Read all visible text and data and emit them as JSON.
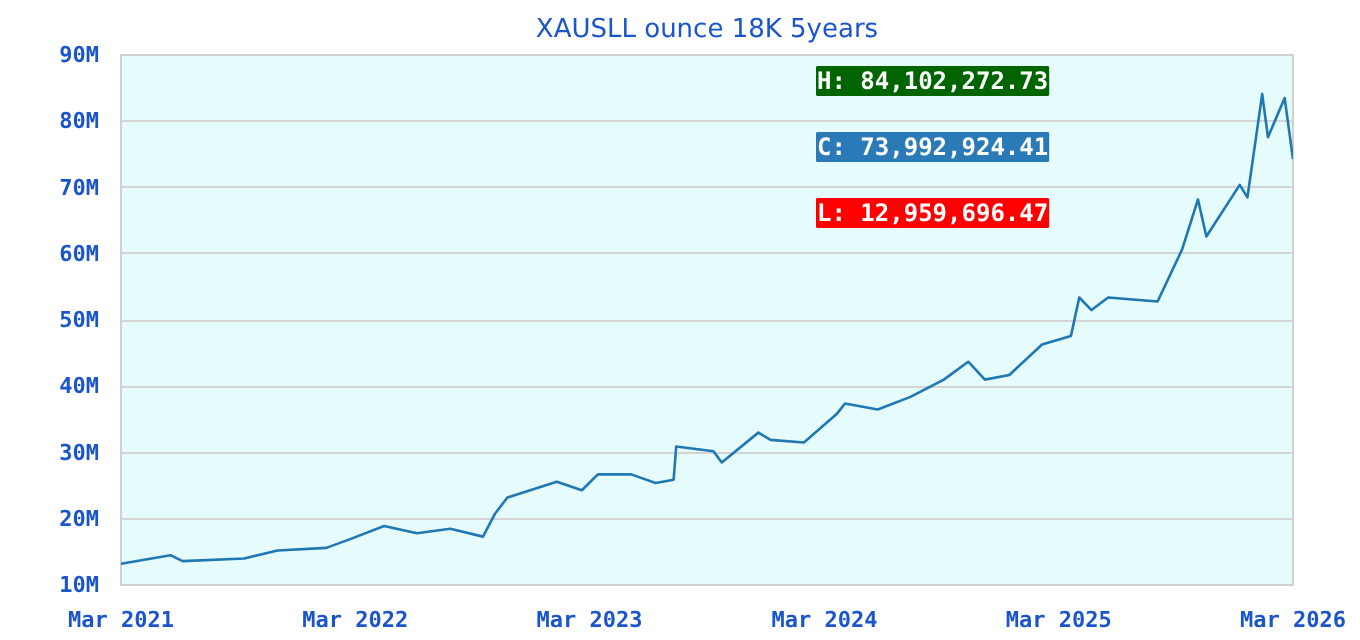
{
  "chart_data": {
    "type": "line",
    "title": "XAUSLL ounce 18K 5years",
    "x": [
      "2021-03-01",
      "2021-05-17",
      "2021-06-05",
      "2021-09-09",
      "2021-10-31",
      "2022-01-15",
      "2022-02-23",
      "2022-04-15",
      "2022-06-05",
      "2022-07-27",
      "2022-09-16",
      "2022-10-05",
      "2022-10-24",
      "2023-01-09",
      "2023-02-17",
      "2023-03-14",
      "2023-05-05",
      "2023-06-12",
      "2023-07-10",
      "2023-07-14",
      "2023-09-10",
      "2023-09-23",
      "2023-11-19",
      "2023-12-08",
      "2024-01-29",
      "2024-03-20",
      "2024-04-02",
      "2024-05-23",
      "2024-07-13",
      "2024-09-03",
      "2024-10-11",
      "2024-11-06",
      "2024-12-14",
      "2025-02-03",
      "2025-03-20",
      "2025-04-02",
      "2025-04-21",
      "2025-05-17",
      "2025-08-02",
      "2025-09-09",
      "2025-10-04",
      "2025-10-17",
      "2025-12-08",
      "2025-12-20",
      "2026-01-12",
      "2026-01-21",
      "2026-02-16",
      "2026-03-01"
    ],
    "series": [
      {
        "color": "#1f77b4",
        "values": [
          13.2,
          14.5,
          13.6,
          14.0,
          15.2,
          15.6,
          17.0,
          18.9,
          17.8,
          18.5,
          17.3,
          20.8,
          23.2,
          25.6,
          24.3,
          26.7,
          26.7,
          25.4,
          25.9,
          30.9,
          30.2,
          28.5,
          33.0,
          31.9,
          31.5,
          35.8,
          37.4,
          36.5,
          38.4,
          41.0,
          43.7,
          41.0,
          41.7,
          46.3,
          47.6,
          53.4,
          51.5,
          53.4,
          52.8,
          60.6,
          68.2,
          62.6,
          70.4,
          68.5,
          84.1,
          77.6,
          83.5,
          74.3
        ]
      }
    ],
    "xlim": [
      "2021-03-01",
      "2026-03-01"
    ],
    "xticks": [
      {
        "value": "2021-03-01",
        "label": "Mar 2021"
      },
      {
        "value": "2022-03-01",
        "label": "Mar 2022"
      },
      {
        "value": "2023-03-01",
        "label": "Mar 2023"
      },
      {
        "value": "2024-03-01",
        "label": "Mar 2024"
      },
      {
        "value": "2025-03-01",
        "label": "Mar 2025"
      },
      {
        "value": "2026-03-01",
        "label": "Mar 2026"
      }
    ],
    "ylim": [
      10,
      90
    ],
    "yticks": [
      {
        "value": 10,
        "label": "10M"
      },
      {
        "value": 20,
        "label": "20M"
      },
      {
        "value": 30,
        "label": "30M"
      },
      {
        "value": 40,
        "label": "40M"
      },
      {
        "value": 50,
        "label": "50M"
      },
      {
        "value": 60,
        "label": "60M"
      },
      {
        "value": 70,
        "label": "70M"
      },
      {
        "value": 80,
        "label": "80M"
      },
      {
        "value": 90,
        "label": "90M"
      }
    ],
    "grid": "y",
    "annotations": [
      "H: 84,102,272.73",
      "C: 73,992,924.41",
      "L: 12,959,696.47"
    ]
  }
}
